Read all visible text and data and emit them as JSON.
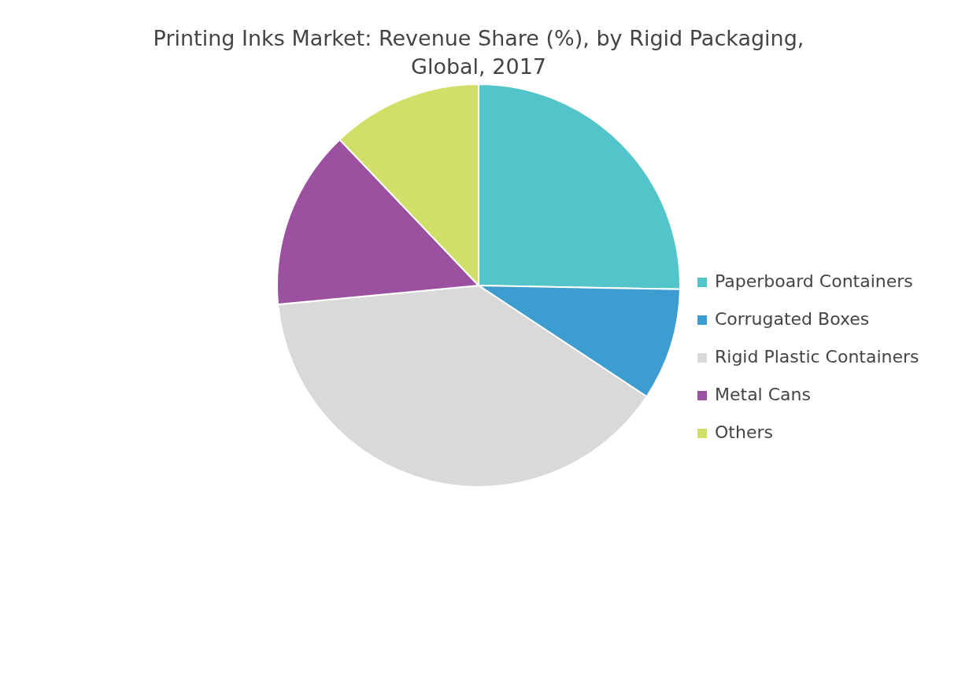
{
  "chart_data": {
    "type": "pie",
    "title": "Printing Inks Market: Revenue Share (%), by Rigid Packaging, Global, 2017",
    "categories": [
      "Paperboard Containers",
      "Corrugated Boxes",
      "Rigid Plastic Containers",
      "Metal Cans",
      "Others"
    ],
    "values": [
      25.3,
      9,
      39.2,
      14.4,
      12.1
    ],
    "colors": [
      "#52c4ca",
      "#3d9dd1",
      "#d9d9d9",
      "#9c51a0",
      "#d1de67"
    ],
    "legend": "right"
  }
}
